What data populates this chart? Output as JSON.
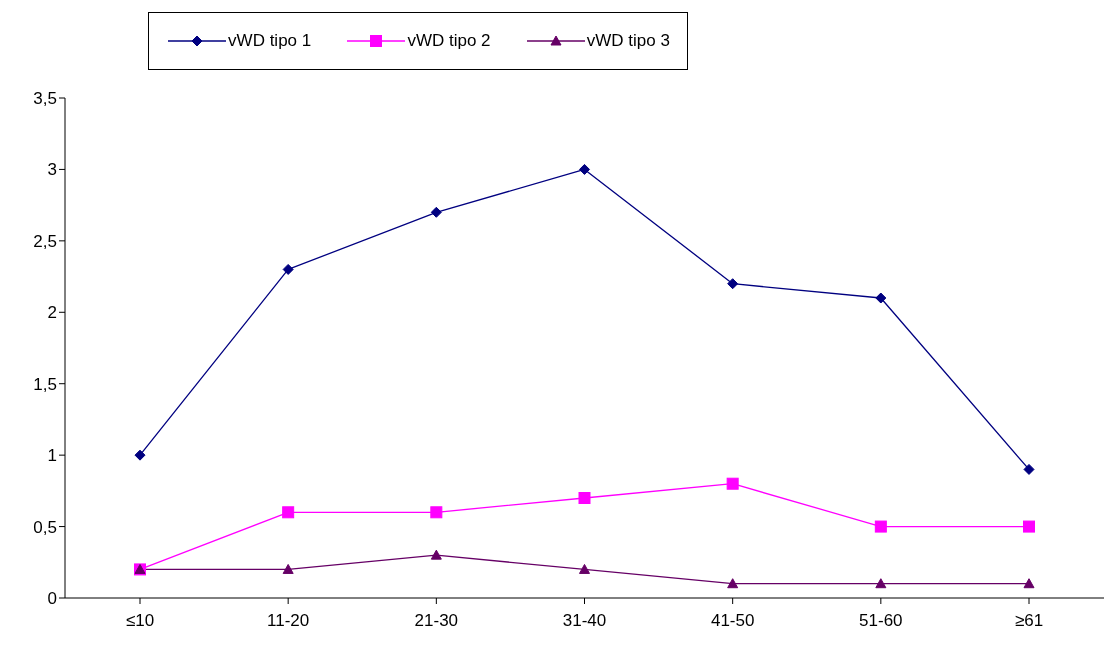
{
  "chart_data": {
    "type": "line",
    "categories": [
      "≤10",
      "11-20",
      "21-30",
      "31-40",
      "41-50",
      "51-60",
      "≥61"
    ],
    "series": [
      {
        "name": "vWD tipo 1",
        "color": "#000080",
        "marker": "diamond",
        "values": [
          1,
          2.3,
          2.7,
          3,
          2.2,
          2.1,
          0.9
        ]
      },
      {
        "name": "vWD tipo 2",
        "color": "#ff00ff",
        "marker": "square",
        "values": [
          0.2,
          0.6,
          0.6,
          0.7,
          0.8,
          0.5,
          0.5
        ]
      },
      {
        "name": "vWD tipo 3",
        "color": "#660066",
        "marker": "triangle",
        "values": [
          0.2,
          0.2,
          0.3,
          0.2,
          0.1,
          0.1,
          0.1
        ]
      }
    ],
    "ylim": [
      0,
      3.5
    ],
    "yticks": [
      {
        "value": 0,
        "label": "0"
      },
      {
        "value": 0.5,
        "label": "0,5"
      },
      {
        "value": 1,
        "label": "1"
      },
      {
        "value": 1.5,
        "label": "1,5"
      },
      {
        "value": 2,
        "label": "2"
      },
      {
        "value": 2.5,
        "label": "2,5"
      },
      {
        "value": 3,
        "label": "3"
      },
      {
        "value": 3.5,
        "label": "3,5"
      }
    ],
    "grid": false,
    "legend": "top",
    "line_style": "solid"
  }
}
